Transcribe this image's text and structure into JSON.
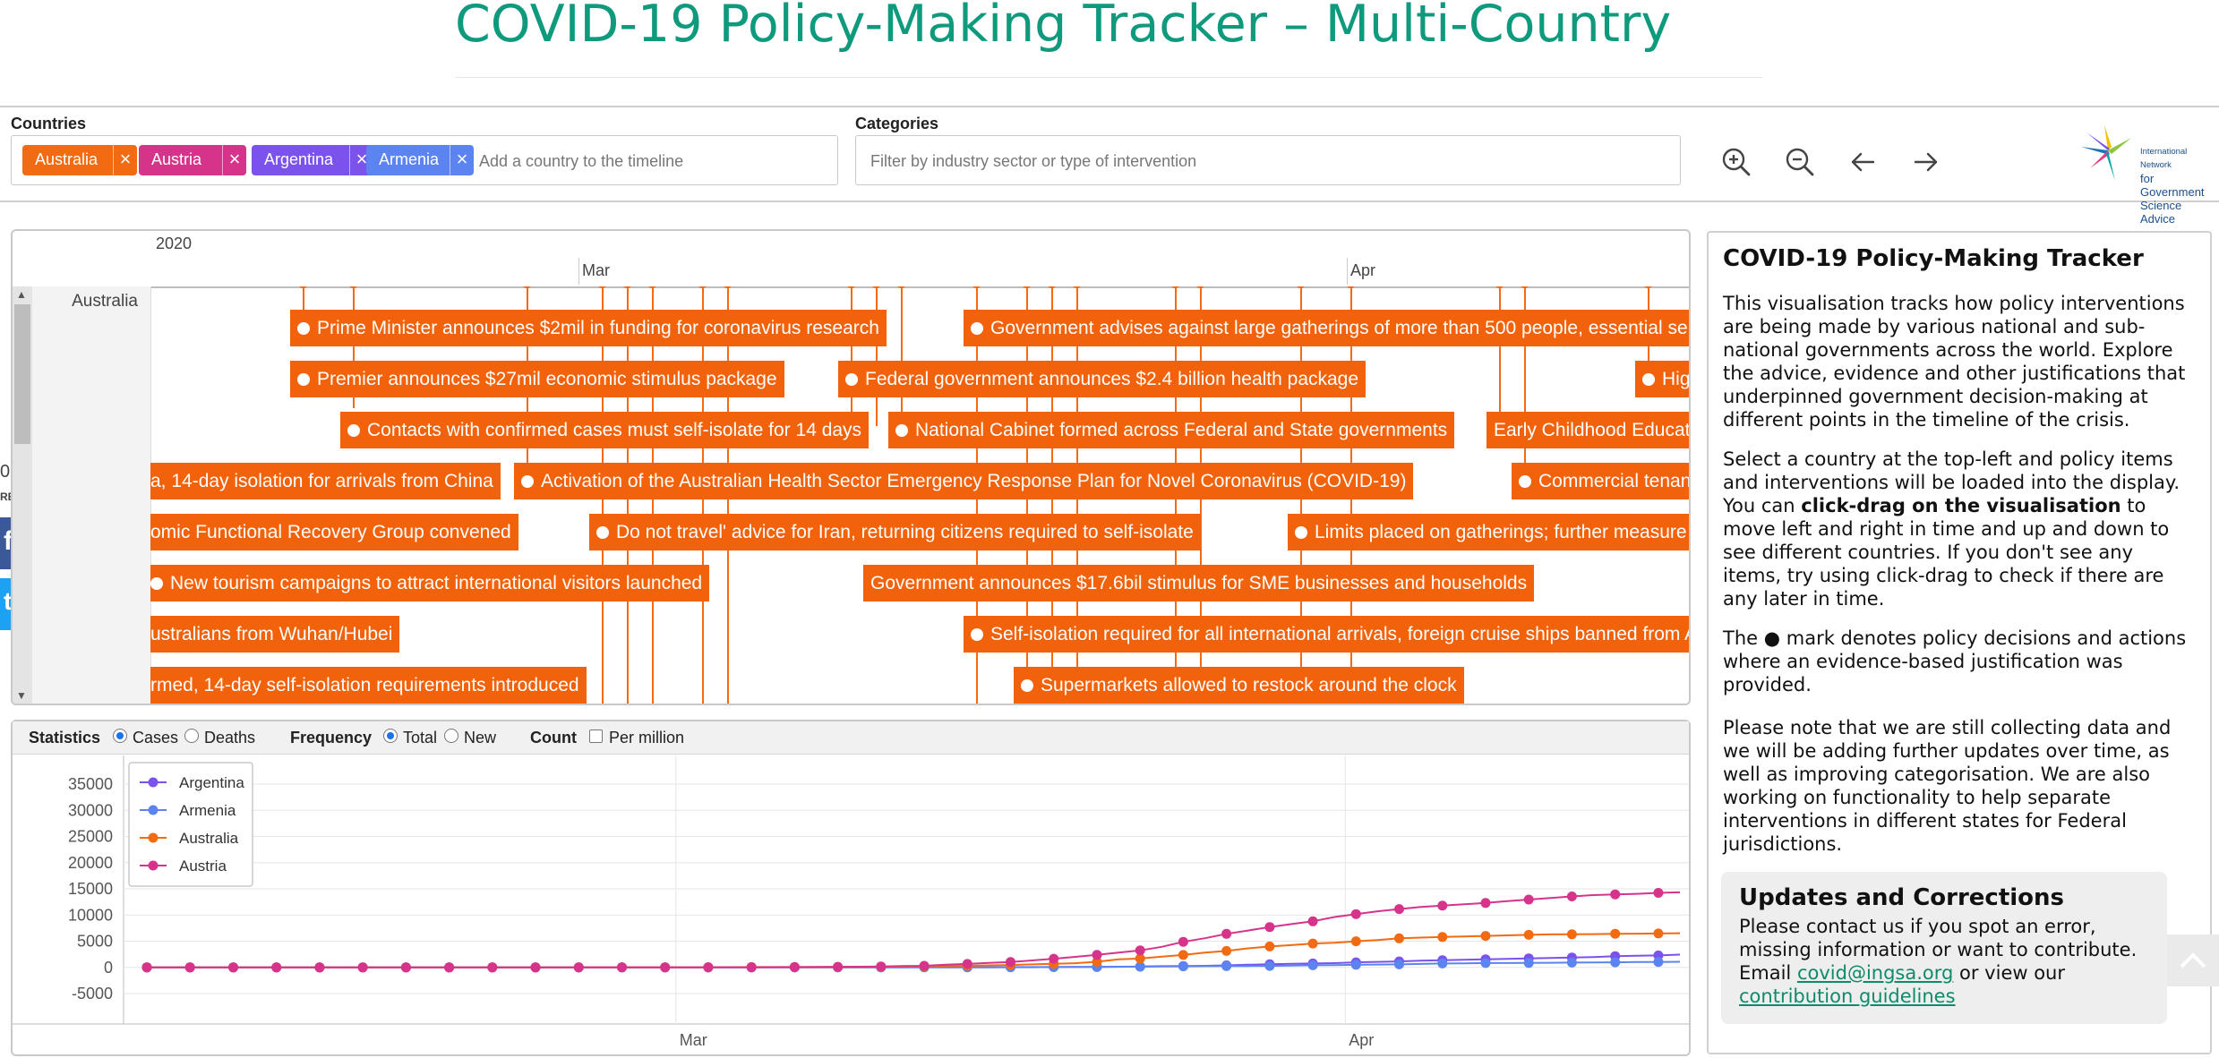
{
  "title": "COVID-19 Policy-Making Tracker – Multi-Country",
  "toolbar": {
    "countries_label": "Countries",
    "countries": [
      {
        "name": "Australia",
        "color": "#f26a11"
      },
      {
        "name": "Austria",
        "color": "#d6338b"
      },
      {
        "name": "Argentina",
        "color": "#7b52ec"
      },
      {
        "name": "Armenia",
        "color": "#5b84f0"
      }
    ],
    "remove_glyph": "×",
    "country_placeholder": "Add a country to the timeline",
    "categories_label": "Categories",
    "category_placeholder": "Filter by industry sector or type of intervention",
    "tools": [
      "zoom-in-icon",
      "zoom-out-icon",
      "arrow-left-icon",
      "arrow-right-icon"
    ],
    "logo_text": [
      "International Network",
      "for Government",
      "Science Advice"
    ]
  },
  "timeline": {
    "year": "2020",
    "months": [
      "Mar",
      "Apr"
    ],
    "country": "Australia",
    "events": [
      {
        "text": "Prime Minister announces $2mil in funding for coronavirus research",
        "dot": true
      },
      {
        "text": "Government advises against large gatherings of more than 500 people, essential se",
        "dot": true
      },
      {
        "text": "Premier announces $27mil economic stimulus package",
        "dot": true
      },
      {
        "text": "Federal government announces $2.4 billion health package",
        "dot": true
      },
      {
        "text": "Hig",
        "dot": true
      },
      {
        "text": "Contacts with confirmed cases must self-isolate for 14 days",
        "dot": true
      },
      {
        "text": "National Cabinet formed across Federal and State governments",
        "dot": true
      },
      {
        "text": "Early Childhood Educat",
        "dot": false
      },
      {
        "text": "a, 14-day isolation for arrivals from China",
        "dot": false
      },
      {
        "text": "Activation of the Australian Health Sector Emergency Response Plan for Novel Coronavirus (COVID-19)",
        "dot": true
      },
      {
        "text": "Commercial tenan",
        "dot": true
      },
      {
        "text": "omic Functional Recovery Group convened",
        "dot": false
      },
      {
        "text": "Do not travel' advice for Iran, returning citizens required to self-isolate",
        "dot": true
      },
      {
        "text": "Limits placed on gatherings; further measure",
        "dot": true
      },
      {
        "text": "New tourism campaigns to attract international visitors launched",
        "dot": true
      },
      {
        "text": "Government announces $17.6bil stimulus for SME businesses and households",
        "dot": false
      },
      {
        "text": "ustralians from Wuhan/Hubei",
        "dot": false
      },
      {
        "text": "Self-isolation required for all international arrivals, foreign cruise ships banned from A",
        "dot": true
      },
      {
        "text": "rmed, 14-day self-isolation requirements introduced",
        "dot": false
      },
      {
        "text": "Supermarkets allowed to restock around the clock",
        "dot": true
      }
    ]
  },
  "side": {
    "fragment_top": "0",
    "fragment_bottom": "RES",
    "facebook_glyph": "f",
    "twitter_glyph": "t"
  },
  "statistics": {
    "statistics_label": "Statistics",
    "cases_label": "Cases",
    "deaths_label": "Deaths",
    "frequency_label": "Frequency",
    "total_label": "Total",
    "new_label": "New",
    "count_label": "Count",
    "per_million_label": "Per million",
    "selected_statistic": "Cases",
    "selected_frequency": "Total",
    "per_million": false
  },
  "chart_data": {
    "type": "line",
    "title": "",
    "xlabel": "",
    "ylabel": "",
    "x_range": [
      "2020-02-05",
      "2020-04-17"
    ],
    "x_tick_labels": [
      "Mar",
      "Apr"
    ],
    "x_year_label": "2020",
    "ylim": [
      -5000,
      35000
    ],
    "y_ticks": [
      35000,
      30000,
      25000,
      20000,
      15000,
      10000,
      5000,
      0,
      -5000
    ],
    "grid": true,
    "legend_position": "top-left",
    "x_start_day": 0,
    "x_step_days": 1,
    "series": [
      {
        "name": "Argentina",
        "color": "#7b52ec",
        "values": [
          0,
          0,
          0,
          0,
          0,
          0,
          0,
          0,
          0,
          0,
          0,
          0,
          0,
          0,
          0,
          0,
          0,
          0,
          0,
          0,
          0,
          0,
          0,
          0,
          0,
          0,
          0,
          0,
          0,
          1,
          2,
          2,
          8,
          9,
          12,
          17,
          19,
          21,
          31,
          34,
          45,
          56,
          65,
          79,
          97,
          128,
          158,
          225,
          266,
          301,
          387,
          502,
          589,
          690,
          745,
          820,
          966,
          1054,
          1133,
          1265,
          1353,
          1451,
          1554,
          1628,
          1715,
          1795,
          1894,
          1975,
          2142,
          2208,
          2277,
          2443
        ]
      },
      {
        "name": "Armenia",
        "color": "#5b84f0",
        "values": [
          0,
          0,
          0,
          0,
          0,
          0,
          0,
          0,
          0,
          0,
          0,
          0,
          0,
          0,
          0,
          0,
          0,
          0,
          0,
          0,
          0,
          0,
          0,
          0,
          0,
          1,
          1,
          1,
          1,
          1,
          1,
          1,
          1,
          1,
          1,
          1,
          1,
          1,
          1,
          1,
          18,
          26,
          52,
          78,
          84,
          115,
          136,
          160,
          194,
          235,
          249,
          265,
          290,
          329,
          407,
          424,
          482,
          532,
          571,
          663,
          736,
          770,
          822,
          833,
          853,
          881,
          921,
          937,
          967,
          1013,
          1039,
          1067
        ]
      },
      {
        "name": "Australia",
        "color": "#f26a11",
        "values": [
          13,
          14,
          15,
          15,
          15,
          15,
          15,
          15,
          15,
          15,
          15,
          15,
          15,
          15,
          15,
          15,
          15,
          15,
          15,
          15,
          21,
          22,
          22,
          23,
          25,
          27,
          30,
          39,
          52,
          55,
          60,
          63,
          76,
          91,
          107,
          128,
          200,
          250,
          297,
          377,
          452,
          568,
          681,
          791,
          1071,
          1549,
          1682,
          2044,
          2364,
          2810,
          3143,
          3640,
          3985,
          4250,
          4557,
          4707,
          4976,
          5224,
          5548,
          5687,
          5797,
          5895,
          6010,
          6108,
          6215,
          6303,
          6315,
          6351,
          6415,
          6440,
          6462,
          6522
        ]
      },
      {
        "name": "Austria",
        "color": "#d6338b",
        "values": [
          0,
          0,
          0,
          0,
          0,
          0,
          0,
          0,
          0,
          0,
          0,
          0,
          0,
          0,
          0,
          0,
          0,
          0,
          0,
          0,
          2,
          2,
          3,
          3,
          9,
          14,
          18,
          21,
          29,
          41,
          55,
          79,
          104,
          131,
          182,
          246,
          302,
          504,
          655,
          860,
          1018,
          1332,
          1646,
          2013,
          2388,
          2814,
          3244,
          3924,
          4876,
          5560,
          6398,
          7029,
          7697,
          8271,
          8788,
          9618,
          10180,
          10711,
          11129,
          11524,
          11781,
          12051,
          12297,
          12639,
          12942,
          13244,
          13555,
          13806,
          13945,
          14041,
          14226,
          14336
        ]
      }
    ]
  },
  "info": {
    "title": "COVID-19 Policy-Making Tracker",
    "p1": "This visualisation tracks how policy interventions are being made by various national and sub-national governments across the world. Explore the advice, evidence and other justifications that underpinned government decision-making at different points in the timeline of the crisis.",
    "p2_a": "Select a country at the top-left and policy items and interventions will be loaded into the display. You can ",
    "p2_b": "click-drag on the visualisation",
    "p2_c": " to move left and right in time and up and down to see different countries. If you don't see any items, try using click-drag to check if there are any later in time.",
    "p3_a": "The ",
    "p3_mark": "●",
    "p3_b": " mark denotes policy decisions and actions where an evidence-based justification was provided.",
    "p4": "Please note that we are still collecting data and we will be adding further updates over time, as well as improving categorisation. We are also working on functionality to help separate interventions in different states for Federal jurisdictions.",
    "updates_title": "Updates and Corrections",
    "updates_a": "Please contact us if you spot an error, missing information or want to contribute. Email ",
    "updates_email": "covid@ingsa.org",
    "updates_b": " or view our ",
    "updates_link": "contribution guidelines"
  }
}
